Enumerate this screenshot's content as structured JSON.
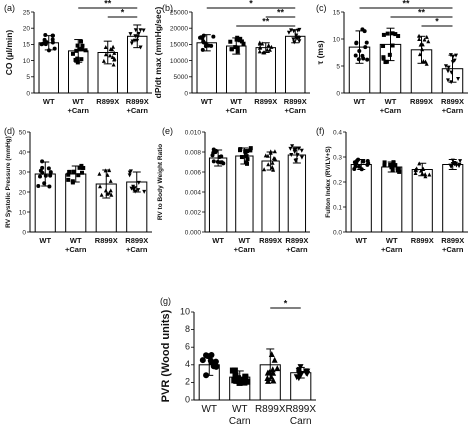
{
  "chart_data": [
    {
      "panel": "(a)",
      "type": "bar",
      "ylabel": "CO (µl/min)",
      "ylim": [
        0,
        25
      ],
      "yticks": [
        0,
        5,
        10,
        15,
        20,
        25
      ],
      "categories": [
        [
          "WT"
        ],
        [
          "WT",
          "+Carn"
        ],
        [
          "R899X"
        ],
        [
          "R899X",
          "+Carn"
        ]
      ],
      "series": [
        {
          "values": [
            15.5,
            13.0,
            12.5,
            17.5
          ],
          "error": [
            2.2,
            3.5,
            3.5,
            3.5
          ]
        }
      ],
      "sig_lines": [
        {
          "from": 1,
          "to": 3,
          "label": "**"
        },
        {
          "from": 2,
          "to": 3,
          "label": "*"
        }
      ]
    },
    {
      "panel": "(b)",
      "type": "bar",
      "ylabel": "dP/dt max (mmHg/sec)",
      "ylim": [
        0,
        25000
      ],
      "yticks": [
        0,
        5000,
        10000,
        15000,
        20000,
        25000
      ],
      "categories": [
        [
          "WT"
        ],
        [
          "WT",
          "+Carn"
        ],
        [
          "R899X"
        ],
        [
          "R899X",
          "+Carn"
        ]
      ],
      "series": [
        {
          "values": [
            15500,
            14500,
            14000,
            17500
          ],
          "error": [
            2500,
            2500,
            1500,
            2000
          ]
        }
      ],
      "sig_lines": [
        {
          "from": 0,
          "to": 3,
          "label": "*"
        },
        {
          "from": 2,
          "to": 3,
          "label": "**"
        },
        {
          "from": 1,
          "to": 3,
          "label": "**"
        }
      ]
    },
    {
      "panel": "(c)",
      "type": "bar",
      "ylabel": "τ (ms)",
      "ylim": [
        0,
        15
      ],
      "yticks": [
        0,
        5,
        10,
        15
      ],
      "categories": [
        [
          "WT"
        ],
        [
          "WT",
          "+Carn"
        ],
        [
          "R899X"
        ],
        [
          "R899X",
          "+Carn"
        ]
      ],
      "series": [
        {
          "values": [
            8.5,
            9.0,
            8.0,
            4.5
          ],
          "error": [
            3.0,
            3.0,
            2.5,
            2.5
          ]
        }
      ],
      "sig_lines": [
        {
          "from": 0,
          "to": 3,
          "label": "**"
        },
        {
          "from": 1,
          "to": 3,
          "label": "**"
        },
        {
          "from": 2,
          "to": 3,
          "label": "*"
        }
      ]
    },
    {
      "panel": "(d)",
      "type": "bar",
      "ylabel": "RV Systolic Pressure (mmHg)",
      "ylim": [
        0,
        50
      ],
      "yticks": [
        0,
        10,
        20,
        30,
        40,
        50
      ],
      "categories": [
        [
          "WT"
        ],
        [
          "WT",
          "+Carn"
        ],
        [
          "R899X"
        ],
        [
          "R899X",
          "+Carn"
        ]
      ],
      "series": [
        {
          "values": [
            29,
            29,
            24,
            25
          ],
          "error": [
            6,
            4,
            7,
            5
          ]
        }
      ],
      "sig_lines": []
    },
    {
      "panel": "(e)",
      "type": "bar",
      "ylabel": "RV to Body Weight Ratio",
      "ylim": [
        0,
        0.01
      ],
      "yticks": [
        "0.000",
        "0.002",
        "0.004",
        "0.006",
        "0.008",
        "0.010"
      ],
      "categories": [
        [
          "WT"
        ],
        [
          "WT",
          "+Carn"
        ],
        [
          "R899X"
        ],
        [
          "R899X",
          "+Carn"
        ]
      ],
      "series": [
        {
          "values": [
            0.0074,
            0.0076,
            0.0071,
            0.0077
          ],
          "error": [
            0.0008,
            0.0008,
            0.0009,
            0.0008
          ]
        }
      ],
      "sig_lines": []
    },
    {
      "panel": "(f)",
      "type": "bar",
      "ylabel": "Fulton Index (RV/LV+S)",
      "ylim": [
        0,
        0.4
      ],
      "yticks": [
        "0.0",
        "0.1",
        "0.2",
        "0.3",
        "0.4"
      ],
      "categories": [
        [
          "WT"
        ],
        [
          "WT",
          "+Carn"
        ],
        [
          "R899X"
        ],
        [
          "R899X",
          "+Carn"
        ]
      ],
      "series": [
        {
          "values": [
            0.27,
            0.26,
            0.25,
            0.27
          ],
          "error": [
            0.02,
            0.02,
            0.025,
            0.02
          ]
        }
      ],
      "sig_lines": []
    },
    {
      "panel": "(g)",
      "type": "bar",
      "ylabel": "PVR (Wood units)",
      "ylim": [
        0,
        10
      ],
      "yticks": [
        0,
        2,
        4,
        6,
        8,
        10
      ],
      "categories": [
        [
          "WT"
        ],
        [
          "WT",
          "Carn"
        ],
        [
          "R899X"
        ],
        [
          "R899X",
          "Carn"
        ]
      ],
      "series": [
        {
          "values": [
            4.0,
            2.6,
            4.0,
            3.1
          ],
          "error": [
            1.2,
            0.7,
            1.8,
            0.6
          ]
        }
      ],
      "sig_lines": [
        {
          "from": 2,
          "to": 3,
          "label": "*"
        }
      ]
    }
  ]
}
